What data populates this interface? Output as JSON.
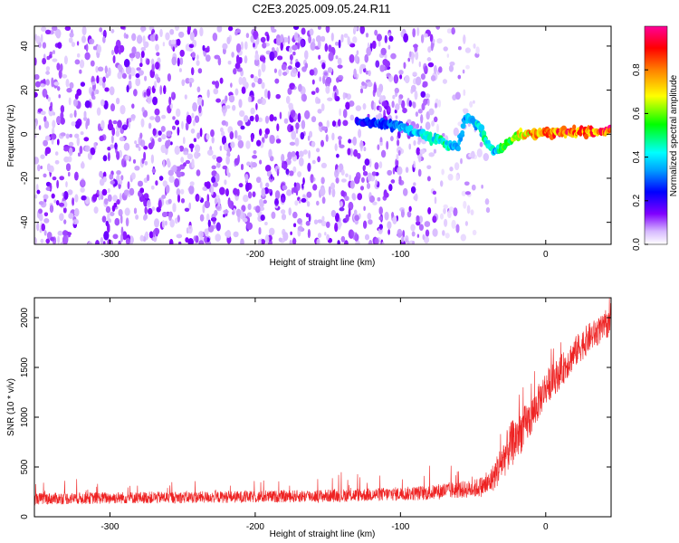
{
  "title": "C2E3.2025.009.05.24.R11",
  "chart_data": [
    {
      "type": "heatmap",
      "xlabel": "Height of straight line (km)",
      "ylabel": "Frequency (Hz)",
      "xlim": [
        -352,
        45
      ],
      "ylim": [
        -50,
        49
      ],
      "xticks": [
        -300,
        -200,
        -100,
        0
      ],
      "yticks": [
        -40,
        -20,
        0,
        20,
        40
      ],
      "colorbar": {
        "label": "Normalized spectral amplitude",
        "range": [
          0,
          1
        ],
        "ticks": [
          "0.0",
          "0.2",
          "0.4",
          "0.6",
          "0.8"
        ],
        "colormap": [
          "#ffffff",
          "#c8a0ff",
          "#7a00ff",
          "#0000ff",
          "#00ffff",
          "#00ff00",
          "#ffff00",
          "#ff8000",
          "#ff0000",
          "#ff00a0"
        ]
      },
      "ridge": {
        "x": [
          -130,
          -110,
          -100,
          -90,
          -80,
          -70,
          -60,
          -55,
          -50,
          -45,
          -40,
          -35,
          -30,
          -25,
          -20,
          -10,
          0,
          10,
          20,
          30,
          45
        ],
        "y": [
          5,
          5,
          3,
          1,
          -1,
          -4,
          -6,
          8,
          6,
          3,
          -5,
          -8,
          -6,
          -3,
          -1,
          0,
          1,
          1,
          1,
          1,
          2
        ],
        "amplitude": [
          0.25,
          0.3,
          0.35,
          0.4,
          0.45,
          0.5,
          0.35,
          0.35,
          0.4,
          0.45,
          0.5,
          0.4,
          0.55,
          0.6,
          0.7,
          0.8,
          0.85,
          0.9,
          0.9,
          0.85,
          0.95
        ]
      },
      "background_cutoff_km": -55
    },
    {
      "type": "line",
      "xlabel": "Height of straight line (km)",
      "ylabel": "SNR (10 * v/v)",
      "xlim": [
        -352,
        45
      ],
      "ylim": [
        0,
        2200
      ],
      "xticks": [
        -300,
        -200,
        -100,
        0
      ],
      "yticks": [
        0,
        500,
        1000,
        1500,
        2000
      ],
      "color": "#ee2222",
      "series": [
        {
          "x": [
            -352,
            -300,
            -250,
            -200,
            -150,
            -100,
            -80,
            -70,
            -60,
            -50,
            -40,
            -35,
            -30,
            -25,
            -20,
            -15,
            -10,
            -5,
            0,
            10,
            20,
            30,
            45
          ],
          "y": [
            180,
            190,
            195,
            200,
            210,
            230,
            240,
            260,
            270,
            280,
            320,
            420,
            560,
            700,
            800,
            900,
            1000,
            1150,
            1300,
            1450,
            1650,
            1800,
            1950
          ],
          "spread": [
            120,
            120,
            120,
            120,
            130,
            140,
            150,
            170,
            170,
            180,
            230,
            300,
            400,
            450,
            500,
            420,
            380,
            360,
            350,
            330,
            320,
            300,
            250
          ]
        }
      ]
    }
  ]
}
